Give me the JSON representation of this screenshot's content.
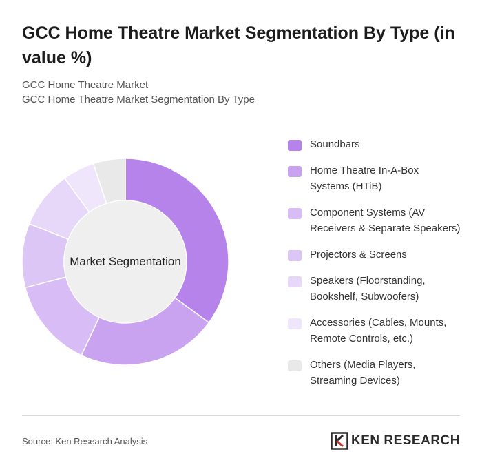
{
  "title": "GCC Home Theatre Market Segmentation By Type (in value %)",
  "subtitle_line1": "GCC Home Theatre Market",
  "subtitle_line2": "GCC Home Theatre Market Segmentation By Type",
  "center_label": "Market Segmentation",
  "source": "Source: Ken Research Analysis",
  "brand": "KEN RESEARCH",
  "chart_data": {
    "type": "pie",
    "donut": true,
    "categories": [
      "Soundbars",
      "Home Theatre In-A-Box Systems (HTiB)",
      "Component Systems (AV Receivers & Separate Speakers)",
      "Projectors & Screens",
      "Speakers (Floorstanding, Bookshelf, Subwoofers)",
      "Accessories (Cables, Mounts, Remote Controls, etc.)",
      "Others (Media Players, Streaming Devices)"
    ],
    "values": [
      35,
      22,
      14,
      10,
      9,
      5,
      5
    ],
    "colors": [
      "#b583ea",
      "#c9a2f0",
      "#d8bcf5",
      "#dcc6f5",
      "#e7d7f9",
      "#efe6fb",
      "#e9e9e9"
    ],
    "legend_position": "right"
  }
}
